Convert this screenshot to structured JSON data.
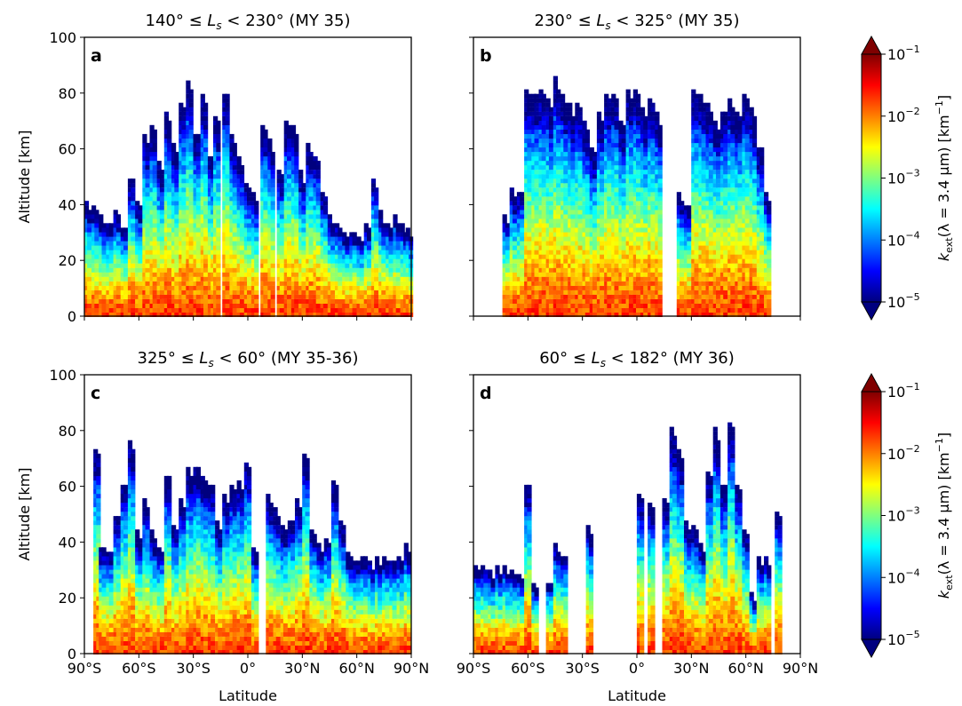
{
  "cbar_stops": [
    "#00007f",
    "#0000ff",
    "#007fff",
    "#00ffff",
    "#7fff7f",
    "#ffff00",
    "#ff7f00",
    "#ff0000",
    "#7f0000"
  ],
  "colorbar": {
    "label_k": "k",
    "label_sub": "ext",
    "label_rest": "(λ = 3.4 µm) [km",
    "label_sup": "−1",
    "label_end": "]",
    "ticks": [
      {
        "base": "10",
        "exp": "−1"
      },
      {
        "base": "10",
        "exp": "−2"
      },
      {
        "base": "10",
        "exp": "−3"
      },
      {
        "base": "10",
        "exp": "−4"
      },
      {
        "base": "10",
        "exp": "−5"
      }
    ]
  },
  "chart_data": [
    {
      "type": "scatter",
      "panel_label": "a",
      "title_lo": "140°",
      "title_hi": "230°",
      "title_my": "(MY 35)",
      "ylabel": "Altitude [km]",
      "xlabel": "",
      "xlim": [
        -90,
        90
      ],
      "ylim": [
        0,
        100
      ],
      "color_scale": "log10",
      "color_range": [
        1e-05,
        0.1
      ],
      "x_ticks": [
        -90,
        -60,
        -30,
        0,
        30,
        60,
        90
      ],
      "x_tick_labels": [
        "90°S",
        "60°S",
        "30°S",
        "0°",
        "30°N",
        "60°N",
        "90°N"
      ],
      "y_tick_labels": [
        "0",
        "20",
        "40",
        "60",
        "80",
        "100"
      ],
      "profiles": [
        {
          "lat": -88,
          "top": 42
        },
        {
          "lat": -84,
          "top": 40
        },
        {
          "lat": -80,
          "top": 36
        },
        {
          "lat": -76,
          "top": 34
        },
        {
          "lat": -72,
          "top": 38
        },
        {
          "lat": -68,
          "top": 32
        },
        {
          "lat": -64,
          "top": 49
        },
        {
          "lat": -60,
          "top": 42
        },
        {
          "lat": -56,
          "top": 65
        },
        {
          "lat": -52,
          "top": 68
        },
        {
          "lat": -48,
          "top": 55
        },
        {
          "lat": -44,
          "top": 73
        },
        {
          "lat": -40,
          "top": 62
        },
        {
          "lat": -36,
          "top": 76
        },
        {
          "lat": -32,
          "top": 84
        },
        {
          "lat": -28,
          "top": 66
        },
        {
          "lat": -24,
          "top": 79
        },
        {
          "lat": -20,
          "top": 58
        },
        {
          "lat": -17,
          "top": 72
        },
        {
          "lat": -12,
          "top": 80
        },
        {
          "lat": -8,
          "top": 66
        },
        {
          "lat": -4,
          "top": 57
        },
        {
          "lat": 0,
          "top": 48
        },
        {
          "lat": 4,
          "top": 44
        },
        {
          "lat": 9,
          "top": 69
        },
        {
          "lat": 13,
          "top": 63
        },
        {
          "lat": 18,
          "top": 53
        },
        {
          "lat": 22,
          "top": 70
        },
        {
          "lat": 26,
          "top": 68
        },
        {
          "lat": 30,
          "top": 52
        },
        {
          "lat": 34,
          "top": 62
        },
        {
          "lat": 38,
          "top": 58
        },
        {
          "lat": 42,
          "top": 44
        },
        {
          "lat": 46,
          "top": 36
        },
        {
          "lat": 50,
          "top": 34
        },
        {
          "lat": 54,
          "top": 30
        },
        {
          "lat": 58,
          "top": 30
        },
        {
          "lat": 62,
          "top": 29
        },
        {
          "lat": 66,
          "top": 33
        },
        {
          "lat": 70,
          "top": 50
        },
        {
          "lat": 74,
          "top": 38
        },
        {
          "lat": 78,
          "top": 34
        },
        {
          "lat": 82,
          "top": 37
        },
        {
          "lat": 86,
          "top": 33
        },
        {
          "lat": 89,
          "top": 32
        }
      ]
    },
    {
      "type": "scatter",
      "panel_label": "b",
      "title_lo": "230°",
      "title_hi": "325°",
      "title_my": "(MY 35)",
      "ylabel": "",
      "xlabel": "",
      "xlim": [
        -90,
        90
      ],
      "ylim": [
        0,
        100
      ],
      "color_scale": "log10",
      "color_range": [
        1e-05,
        0.1
      ],
      "x_ticks": [
        -90,
        -60,
        -30,
        0,
        30,
        60,
        90
      ],
      "x_tick_labels": [
        "90°S",
        "60°S",
        "30°S",
        "0°",
        "30°N",
        "60°N",
        "90°N"
      ],
      "y_tick_labels": [
        "0",
        "20",
        "40",
        "60",
        "80",
        "100"
      ],
      "profiles": [
        {
          "lat": -72,
          "top": 36
        },
        {
          "lat": -68,
          "top": 46
        },
        {
          "lat": -64,
          "top": 45
        },
        {
          "lat": -60,
          "top": 81
        },
        {
          "lat": -56,
          "top": 80
        },
        {
          "lat": -52,
          "top": 82
        },
        {
          "lat": -48,
          "top": 78
        },
        {
          "lat": -44,
          "top": 86
        },
        {
          "lat": -40,
          "top": 80
        },
        {
          "lat": -36,
          "top": 76
        },
        {
          "lat": -32,
          "top": 76
        },
        {
          "lat": -28,
          "top": 70
        },
        {
          "lat": -24,
          "top": 60
        },
        {
          "lat": -20,
          "top": 73
        },
        {
          "lat": -16,
          "top": 80
        },
        {
          "lat": -12,
          "top": 80
        },
        {
          "lat": -8,
          "top": 70
        },
        {
          "lat": -4,
          "top": 82
        },
        {
          "lat": 0,
          "top": 82
        },
        {
          "lat": 4,
          "top": 75
        },
        {
          "lat": 8,
          "top": 78
        },
        {
          "lat": 12,
          "top": 73
        },
        {
          "lat": 24,
          "top": 44
        },
        {
          "lat": 28,
          "top": 40
        },
        {
          "lat": 32,
          "top": 82
        },
        {
          "lat": 36,
          "top": 80
        },
        {
          "lat": 40,
          "top": 76
        },
        {
          "lat": 44,
          "top": 70
        },
        {
          "lat": 48,
          "top": 74
        },
        {
          "lat": 52,
          "top": 78
        },
        {
          "lat": 56,
          "top": 74
        },
        {
          "lat": 60,
          "top": 80
        },
        {
          "lat": 64,
          "top": 75
        },
        {
          "lat": 68,
          "top": 60
        },
        {
          "lat": 72,
          "top": 45
        }
      ]
    },
    {
      "type": "scatter",
      "panel_label": "c",
      "title_lo": "325°",
      "title_hi": "60°",
      "title_my": "(MY 35-36)",
      "ylabel": "Altitude [km]",
      "xlabel": "Latitude",
      "xlim": [
        -90,
        90
      ],
      "ylim": [
        0,
        100
      ],
      "color_scale": "log10",
      "color_range": [
        1e-05,
        0.1
      ],
      "x_ticks": [
        -90,
        -60,
        -30,
        0,
        30,
        60,
        90
      ],
      "x_tick_labels": [
        "90°S",
        "60°S",
        "30°S",
        "0°",
        "30°N",
        "60°N",
        "90°N"
      ],
      "y_tick_labels": [
        "0",
        "20",
        "40",
        "60",
        "80",
        "100"
      ],
      "profiles": [
        {
          "lat": -83,
          "top": 73
        },
        {
          "lat": -80,
          "top": 38
        },
        {
          "lat": -76,
          "top": 37
        },
        {
          "lat": -72,
          "top": 50
        },
        {
          "lat": -68,
          "top": 61
        },
        {
          "lat": -64,
          "top": 77
        },
        {
          "lat": -60,
          "top": 44
        },
        {
          "lat": -56,
          "top": 55
        },
        {
          "lat": -52,
          "top": 44
        },
        {
          "lat": -48,
          "top": 38
        },
        {
          "lat": -44,
          "top": 64
        },
        {
          "lat": -40,
          "top": 46
        },
        {
          "lat": -36,
          "top": 56
        },
        {
          "lat": -32,
          "top": 67
        },
        {
          "lat": -28,
          "top": 67
        },
        {
          "lat": -24,
          "top": 64
        },
        {
          "lat": -20,
          "top": 60
        },
        {
          "lat": -16,
          "top": 48
        },
        {
          "lat": -12,
          "top": 58
        },
        {
          "lat": -8,
          "top": 60
        },
        {
          "lat": -4,
          "top": 62
        },
        {
          "lat": 0,
          "top": 69
        },
        {
          "lat": 4,
          "top": 38
        },
        {
          "lat": 12,
          "top": 57
        },
        {
          "lat": 16,
          "top": 52
        },
        {
          "lat": 20,
          "top": 46
        },
        {
          "lat": 24,
          "top": 48
        },
        {
          "lat": 28,
          "top": 56
        },
        {
          "lat": 32,
          "top": 72
        },
        {
          "lat": 36,
          "top": 45
        },
        {
          "lat": 40,
          "top": 40
        },
        {
          "lat": 44,
          "top": 41
        },
        {
          "lat": 48,
          "top": 62
        },
        {
          "lat": 52,
          "top": 48
        },
        {
          "lat": 56,
          "top": 36
        },
        {
          "lat": 60,
          "top": 33
        },
        {
          "lat": 64,
          "top": 35
        },
        {
          "lat": 68,
          "top": 34
        },
        {
          "lat": 72,
          "top": 35
        },
        {
          "lat": 76,
          "top": 35
        },
        {
          "lat": 80,
          "top": 34
        },
        {
          "lat": 84,
          "top": 35
        },
        {
          "lat": 88,
          "top": 39
        }
      ]
    },
    {
      "type": "scatter",
      "panel_label": "d",
      "title_lo": "60°",
      "title_hi": "182°",
      "title_my": "(MY 36)",
      "ylabel": "",
      "xlabel": "Latitude",
      "xlim": [
        -90,
        90
      ],
      "ylim": [
        0,
        100
      ],
      "color_scale": "log10",
      "color_range": [
        1e-05,
        0.1
      ],
      "x_ticks": [
        -90,
        -60,
        -30,
        0,
        30,
        60,
        90
      ],
      "x_tick_labels": [
        "90°S",
        "60°S",
        "30°S",
        "0°",
        "30°N",
        "60°N",
        "90°N"
      ],
      "y_tick_labels": [
        "0",
        "20",
        "40",
        "60",
        "80",
        "100"
      ],
      "profiles": [
        {
          "lat": -88,
          "top": 31
        },
        {
          "lat": -84,
          "top": 31
        },
        {
          "lat": -80,
          "top": 30
        },
        {
          "lat": -76,
          "top": 32
        },
        {
          "lat": -72,
          "top": 32
        },
        {
          "lat": -68,
          "top": 30
        },
        {
          "lat": -64,
          "top": 29
        },
        {
          "lat": -60,
          "top": 61
        },
        {
          "lat": -56,
          "top": 26
        },
        {
          "lat": -48,
          "top": 26
        },
        {
          "lat": -44,
          "top": 40
        },
        {
          "lat": -40,
          "top": 35
        },
        {
          "lat": -26,
          "top": 46
        },
        {
          "lat": 2,
          "top": 57
        },
        {
          "lat": 8,
          "top": 54
        },
        {
          "lat": 16,
          "top": 55
        },
        {
          "lat": 20,
          "top": 81
        },
        {
          "lat": 24,
          "top": 73
        },
        {
          "lat": 28,
          "top": 47
        },
        {
          "lat": 32,
          "top": 46
        },
        {
          "lat": 36,
          "top": 40
        },
        {
          "lat": 40,
          "top": 66
        },
        {
          "lat": 44,
          "top": 81
        },
        {
          "lat": 48,
          "top": 60
        },
        {
          "lat": 52,
          "top": 83
        },
        {
          "lat": 56,
          "top": 60
        },
        {
          "lat": 60,
          "top": 45
        },
        {
          "lat": 64,
          "top": 22
        },
        {
          "lat": 68,
          "top": 35
        },
        {
          "lat": 72,
          "top": 35
        },
        {
          "lat": 78,
          "top": 51
        }
      ]
    }
  ]
}
